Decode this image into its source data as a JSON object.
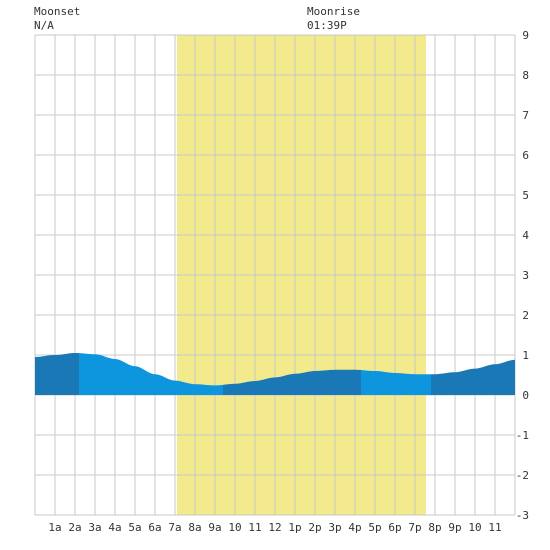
{
  "header": {
    "moonset_label": "Moonset",
    "moonset_value": "N/A",
    "moonrise_label": "Moonrise",
    "moonrise_value": "01:39P"
  },
  "chart_data": {
    "type": "area",
    "title": "",
    "xlabel": "",
    "ylabel": "",
    "x_range": [
      0,
      24
    ],
    "ylim": [
      -3,
      9
    ],
    "grid": true,
    "x_tick_labels": [
      "1a",
      "2a",
      "3a",
      "4a",
      "5a",
      "6a",
      "7a",
      "8a",
      "9a",
      "10",
      "11",
      "12",
      "1p",
      "2p",
      "3p",
      "4p",
      "5p",
      "6p",
      "7p",
      "8p",
      "9p",
      "10",
      "11"
    ],
    "y_tick_labels": [
      "9",
      "8",
      "7",
      "6",
      "5",
      "4",
      "3",
      "2",
      "1",
      "0",
      "-1",
      "-2",
      "-3"
    ],
    "daylight": {
      "start_hour": 7.1,
      "end_hour": 19.55,
      "color": "#f2ea8c"
    },
    "tide_points": [
      {
        "hour": 0,
        "height": 0.95
      },
      {
        "hour": 1,
        "height": 1.0
      },
      {
        "hour": 2,
        "height": 1.05
      },
      {
        "hour": 3,
        "height": 1.02
      },
      {
        "hour": 4,
        "height": 0.9
      },
      {
        "hour": 5,
        "height": 0.72
      },
      {
        "hour": 6,
        "height": 0.52
      },
      {
        "hour": 7,
        "height": 0.36
      },
      {
        "hour": 8,
        "height": 0.27
      },
      {
        "hour": 9,
        "height": 0.24
      },
      {
        "hour": 10,
        "height": 0.28
      },
      {
        "hour": 11,
        "height": 0.35
      },
      {
        "hour": 12,
        "height": 0.44
      },
      {
        "hour": 13,
        "height": 0.53
      },
      {
        "hour": 14,
        "height": 0.6
      },
      {
        "hour": 15,
        "height": 0.63
      },
      {
        "hour": 16,
        "height": 0.63
      },
      {
        "hour": 17,
        "height": 0.6
      },
      {
        "hour": 18,
        "height": 0.55
      },
      {
        "hour": 19,
        "height": 0.52
      },
      {
        "hour": 20,
        "height": 0.52
      },
      {
        "hour": 21,
        "height": 0.57
      },
      {
        "hour": 22,
        "height": 0.66
      },
      {
        "hour": 23,
        "height": 0.77
      },
      {
        "hour": 24,
        "height": 0.88
      }
    ],
    "band_boundaries": [
      2.2,
      9.4,
      16.3,
      19.8
    ],
    "colors": {
      "dark": "#1a78b6",
      "light": "#0d96dd",
      "grid": "#c8c8c8"
    }
  }
}
